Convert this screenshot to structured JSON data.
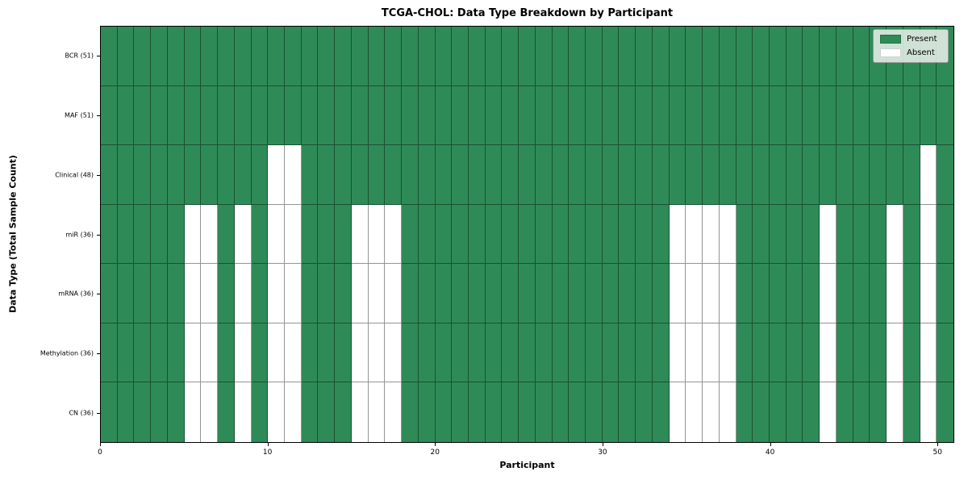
{
  "chart_data": {
    "type": "heatmap",
    "title": "TCGA-CHOL: Data Type Breakdown by Participant",
    "xlabel": "Participant",
    "ylabel": "Data Type (Total Sample Count)",
    "n_participants": 51,
    "xlim": [
      0,
      51
    ],
    "x_ticks": [
      0,
      10,
      20,
      30,
      40,
      50
    ],
    "grid": true,
    "legend_position": "upper right",
    "colors": {
      "present": "#2e8b57",
      "absent": "#ffffff",
      "gridline": "rgba(0,0,0,0.42)",
      "border": "#000000"
    },
    "legend": [
      {
        "label": "Present",
        "color": "#2e8b57"
      },
      {
        "label": "Absent",
        "color": "#ffffff"
      }
    ],
    "rows": [
      {
        "label": "BCR (51)",
        "data_type": "BCR",
        "total_sample_count": 51,
        "absent_participants": []
      },
      {
        "label": "MAF (51)",
        "data_type": "MAF",
        "total_sample_count": 51,
        "absent_participants": []
      },
      {
        "label": "Clinical (48)",
        "data_type": "Clinical",
        "total_sample_count": 48,
        "absent_participants": [
          10,
          11,
          49
        ]
      },
      {
        "label": "miR (36)",
        "data_type": "miR",
        "total_sample_count": 36,
        "absent_participants": [
          5,
          6,
          8,
          10,
          11,
          15,
          16,
          17,
          34,
          35,
          36,
          37,
          43,
          47,
          49
        ]
      },
      {
        "label": "mRNA (36)",
        "data_type": "mRNA",
        "total_sample_count": 36,
        "absent_participants": [
          5,
          6,
          8,
          10,
          11,
          15,
          16,
          17,
          34,
          35,
          36,
          37,
          43,
          47,
          49
        ]
      },
      {
        "label": "Methylation (36)",
        "data_type": "Methylation",
        "total_sample_count": 36,
        "absent_participants": [
          5,
          6,
          8,
          10,
          11,
          15,
          16,
          17,
          34,
          35,
          36,
          37,
          43,
          47,
          49
        ]
      },
      {
        "label": "CN (36)",
        "data_type": "CN",
        "total_sample_count": 36,
        "absent_participants": [
          5,
          6,
          8,
          10,
          11,
          15,
          16,
          17,
          34,
          35,
          36,
          37,
          43,
          47,
          49
        ]
      }
    ]
  }
}
